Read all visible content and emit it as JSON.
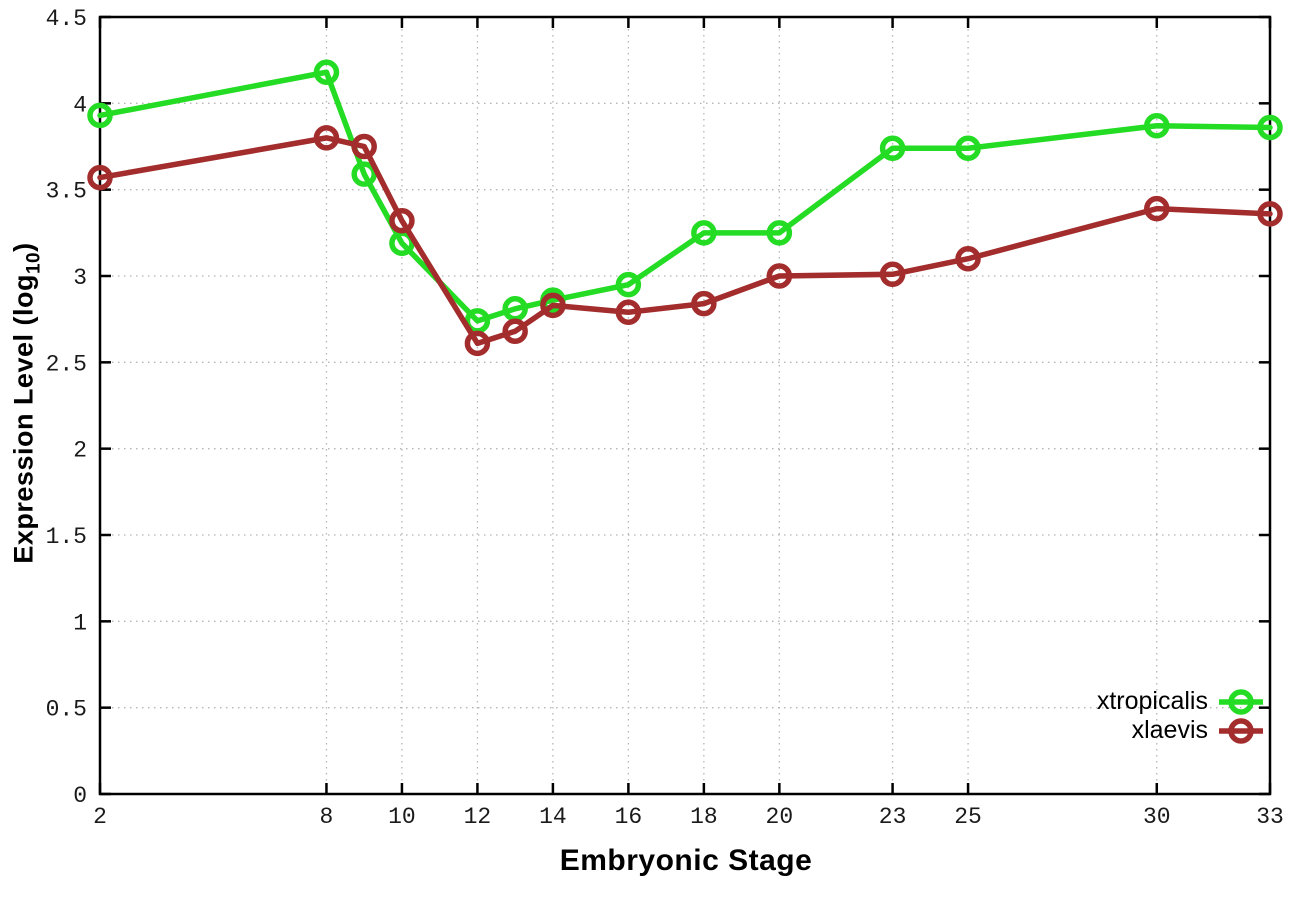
{
  "chart_data": {
    "type": "line",
    "title": "",
    "xlabel": "Embryonic Stage",
    "ylabel": {
      "prefix": "Expression Level (log",
      "sub": "10",
      "suffix": ")"
    },
    "xlim": [
      2,
      33
    ],
    "ylim": [
      0,
      4.5
    ],
    "x_ticks": [
      2,
      8,
      10,
      12,
      14,
      16,
      18,
      20,
      23,
      25,
      30,
      33
    ],
    "y_ticks": [
      "0",
      "0.5",
      "1",
      "1.5",
      "2",
      "2.5",
      "3",
      "3.5",
      "4",
      "4.5"
    ],
    "grid": true,
    "legend_position": "inside-bottom-right",
    "x": [
      2,
      8,
      9,
      10,
      12,
      13,
      14,
      16,
      18,
      20,
      23,
      25,
      30,
      33
    ],
    "series": [
      {
        "name": "xtropicalis",
        "color": "#23dc23",
        "marker": "open-circle",
        "values": [
          3.93,
          4.18,
          3.59,
          3.19,
          2.74,
          2.81,
          2.86,
          2.95,
          3.25,
          3.25,
          3.74,
          3.74,
          3.87,
          3.86
        ]
      },
      {
        "name": "xlaevis",
        "color": "#a32c2c",
        "marker": "open-circle",
        "values": [
          3.57,
          3.8,
          3.75,
          3.32,
          2.61,
          2.68,
          2.83,
          2.79,
          2.84,
          3.0,
          3.01,
          3.1,
          3.39,
          3.36
        ]
      }
    ],
    "axis_color": "#000000",
    "grid_color": "#b5b5b5",
    "tick_label_color": "#1a1a1a"
  }
}
